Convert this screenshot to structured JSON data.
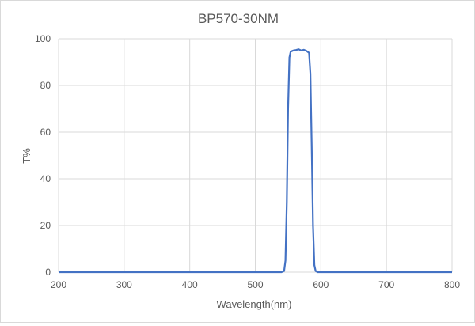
{
  "chart_data": {
    "type": "line",
    "title": "BP570-30NM",
    "xlabel": "Wavelength(nm)",
    "ylabel": "T%",
    "xlim": [
      200,
      800
    ],
    "ylim": [
      0,
      100
    ],
    "xticks": [
      200,
      300,
      400,
      500,
      600,
      700,
      800
    ],
    "yticks": [
      0,
      20,
      40,
      60,
      80,
      100
    ],
    "grid": true,
    "legend": "none",
    "line_color": "#4472C4",
    "series": [
      {
        "x": [
          200,
          540,
          544,
          546,
          548,
          550,
          552,
          554,
          558,
          562,
          566,
          570,
          574,
          578,
          582,
          584,
          586,
          588,
          590,
          592,
          595,
          800
        ],
        "y": [
          0,
          0,
          0.5,
          5,
          30,
          70,
          92,
          94.5,
          95,
          95.2,
          95.5,
          95,
          95.3,
          94.8,
          94,
          85,
          55,
          20,
          3,
          0.5,
          0,
          0
        ]
      }
    ]
  }
}
